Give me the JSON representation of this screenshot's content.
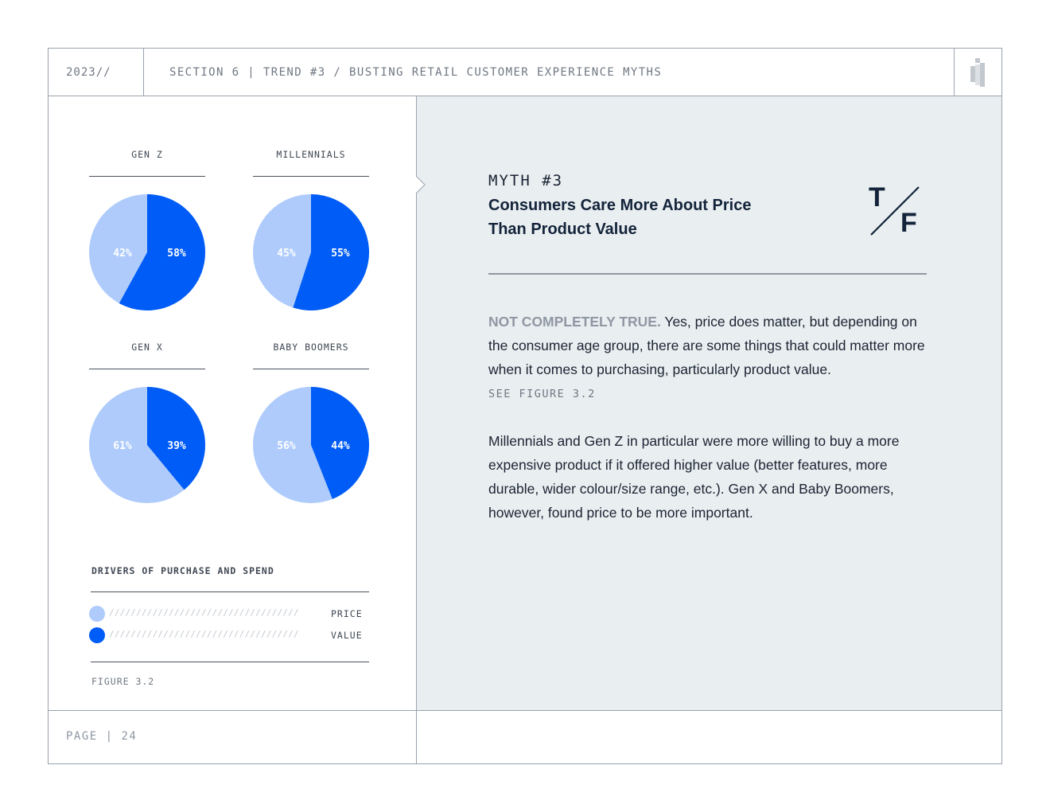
{
  "header": {
    "year": "2023//",
    "section": "SECTION 6 | TREND #3 / BUSTING RETAIL CUSTOMER EXPERIENCE MYTHS",
    "logo_icon": "brand-logo-icon"
  },
  "colors": {
    "price": "#aecbfc",
    "value": "#005cf7",
    "panel_bg": "#e9eef0",
    "rule": "#9aa3ae"
  },
  "chart_data": {
    "type": "pie",
    "title": "DRIVERS OF PURCHASE AND SPEND",
    "legend": [
      "PRICE",
      "VALUE"
    ],
    "legend_hatch": "///////////////////////////////////",
    "caption": "FIGURE 3.2",
    "pies": [
      {
        "group": "GEN Z",
        "price": 42,
        "value": 58,
        "price_label": "42%",
        "value_label": "58%"
      },
      {
        "group": "MILLENNIALS",
        "price": 45,
        "value": 55,
        "price_label": "45%",
        "value_label": "55%"
      },
      {
        "group": "GEN X",
        "price": 61,
        "value": 39,
        "price_label": "61%",
        "value_label": "39%"
      },
      {
        "group": "BABY BOOMERS",
        "price": 56,
        "value": 44,
        "price_label": "56%",
        "value_label": "44%"
      }
    ]
  },
  "myth": {
    "kicker": "MYTH #3",
    "title": "Consumers Care More About Price Than Product Value",
    "verdict_true": "T",
    "verdict_false": "F",
    "lead": "NOT COMPLETELY TRUE.",
    "paragraph1": " Yes, price does matter, but depending on the consumer age group, there are some things that could matter more when it comes to purchasing, particularly product value.",
    "see_figure": "SEE FIGURE 3.2",
    "paragraph2": "Millennials and Gen Z in particular were more willing to buy a more expensive product if it offered higher value (better features, more durable, wider colour/size range, etc.). Gen X and Baby Boomers, however, found price to be more important."
  },
  "footer": {
    "page": "PAGE | 24"
  }
}
